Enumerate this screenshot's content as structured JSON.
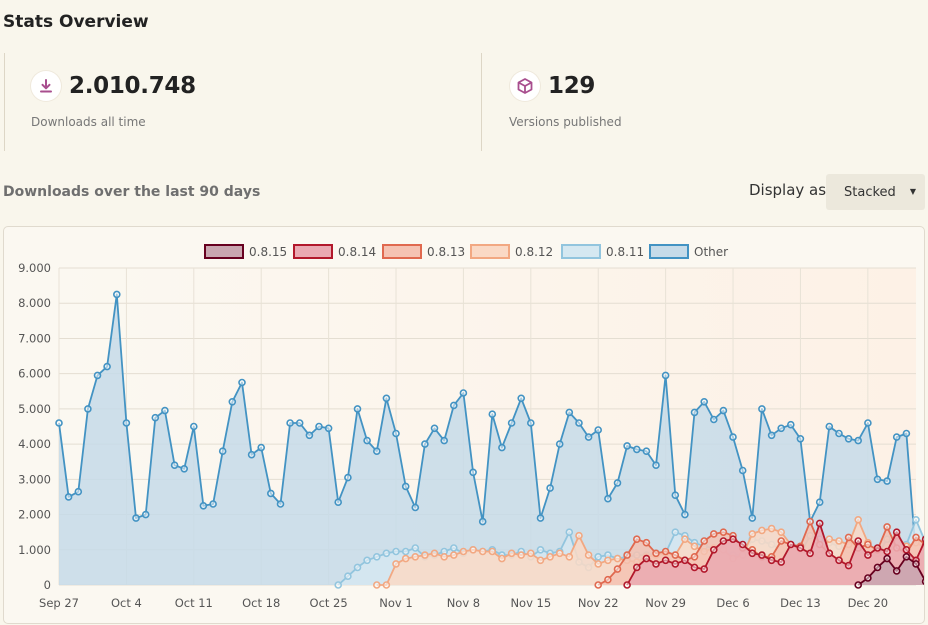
{
  "page": {
    "title": "Stats Overview"
  },
  "stats": {
    "downloads": {
      "value": "2.010.748",
      "label": "Downloads all time",
      "icon": "download-icon",
      "color": "#a84e8e"
    },
    "versions": {
      "value": "129",
      "label": "Versions published",
      "icon": "box-icon",
      "color": "#a84e8e"
    }
  },
  "section": {
    "title": "Downloads over the last 90 days"
  },
  "display": {
    "label": "Display as",
    "selected": "Stacked"
  },
  "chart_data": {
    "type": "area",
    "stacked": true,
    "grid": true,
    "legend_position": "top",
    "ylim": [
      0,
      9000
    ],
    "yticks": [
      "0",
      "1.000",
      "2.000",
      "3.000",
      "4.000",
      "5.000",
      "6.000",
      "7.000",
      "8.000",
      "9.000"
    ],
    "xticks": [
      {
        "label": "Sep 27",
        "index": 0
      },
      {
        "label": "Oct 4",
        "index": 7
      },
      {
        "label": "Oct 11",
        "index": 14
      },
      {
        "label": "Oct 18",
        "index": 21
      },
      {
        "label": "Oct 25",
        "index": 28
      },
      {
        "label": "Nov 1",
        "index": 35
      },
      {
        "label": "Nov 8",
        "index": 42
      },
      {
        "label": "Nov 15",
        "index": 49
      },
      {
        "label": "Nov 22",
        "index": 56
      },
      {
        "label": "Nov 29",
        "index": 63
      },
      {
        "label": "Dec 6",
        "index": 70
      },
      {
        "label": "Dec 13",
        "index": 77
      },
      {
        "label": "Dec 20",
        "index": 84
      }
    ],
    "series": [
      {
        "name": "0.8.15",
        "line": "#67001f",
        "fill": "#c9a6b0",
        "start": 83,
        "totals": [
          0,
          200,
          500,
          750,
          400,
          800,
          600,
          100
        ]
      },
      {
        "name": "0.8.14",
        "line": "#b2182b",
        "fill": "#eaa9b2",
        "start": 59,
        "totals": [
          0,
          500,
          750,
          600,
          700,
          600,
          700,
          500,
          450,
          1000,
          1250,
          1300,
          1150,
          900,
          850,
          700,
          650,
          1150,
          1050,
          900,
          1750,
          900,
          700,
          550,
          1250,
          850,
          1050,
          950,
          1500,
          1000,
          700,
          1300,
          1050,
          200
        ]
      },
      {
        "name": "0.8.13",
        "line": "#e0694f",
        "fill": "#f5c2b2",
        "start": 56,
        "totals": [
          0,
          150,
          450,
          850,
          1300,
          1200,
          900,
          950,
          850,
          700,
          800,
          1250,
          1450,
          1500,
          1400,
          1050,
          1000,
          800,
          800,
          1250,
          1150,
          1100,
          1800,
          1150,
          900,
          700,
          1350,
          1050,
          1150,
          1000,
          1650,
          1050,
          900,
          1350,
          1150,
          250
        ]
      },
      {
        "name": "0.8.12",
        "line": "#f2a882",
        "fill": "#fad9c5",
        "start": 33,
        "totals": [
          0,
          0,
          600,
          750,
          800,
          850,
          900,
          800,
          850,
          950,
          1000,
          950,
          950,
          750,
          900,
          850,
          900,
          700,
          800,
          900,
          800,
          1400,
          850,
          600,
          700,
          750,
          700,
          650,
          800,
          850,
          900,
          850,
          1300,
          1100,
          950,
          1050,
          1000,
          750,
          850,
          1450,
          1550,
          1600,
          1500,
          1150,
          1000,
          850,
          850,
          1300,
          1250,
          1150,
          1850,
          1200,
          900,
          750,
          1400,
          1100,
          1200,
          1050,
          1700,
          1100,
          950,
          1400,
          1200,
          300
        ]
      },
      {
        "name": "0.8.11",
        "line": "#92c5de",
        "fill": "#d5e8f1",
        "start": 29,
        "totals": [
          0,
          250,
          500,
          700,
          800,
          900,
          950,
          950,
          1050,
          800,
          850,
          950,
          1050,
          900,
          1000,
          950,
          1000,
          850,
          850,
          950,
          800,
          1000,
          900,
          950,
          1500,
          650,
          500,
          800,
          850,
          750,
          800,
          850,
          850,
          900,
          900,
          1500,
          1400,
          1200,
          1100,
          1050,
          900,
          850,
          850,
          1300,
          1250,
          1150,
          1000,
          900,
          900,
          1400,
          1300,
          1200,
          1100,
          1000,
          1000,
          850,
          850,
          1300,
          1250,
          1150,
          1850,
          1200,
          900,
          750,
          1400,
          1100,
          1200,
          1050,
          1700,
          1100,
          950,
          1400,
          1200,
          300
        ]
      },
      {
        "name": "Other",
        "line": "#4393c3",
        "fill": "#c6dbe9",
        "start": 0,
        "totals": [
          4600,
          2500,
          2650,
          5000,
          5950,
          6200,
          8250,
          4600,
          1900,
          2000,
          4750,
          4950,
          3400,
          3300,
          4500,
          2250,
          2300,
          3800,
          5200,
          5750,
          3700,
          3900,
          2600,
          2300,
          4600,
          4600,
          4250,
          4500,
          4450,
          2350,
          3050,
          5000,
          4100,
          3800,
          5300,
          4300,
          2800,
          2200,
          4000,
          4450,
          4100,
          5100,
          5450,
          3200,
          1800,
          4850,
          3900,
          4600,
          5300,
          4600,
          1900,
          2750,
          4000,
          4900,
          4600,
          4200,
          4400,
          2450,
          2900,
          3950,
          3850,
          3800,
          3400,
          5950,
          2550,
          2000,
          4900,
          5200,
          4700,
          4950,
          4200,
          3250,
          1900,
          5000,
          4250,
          4450,
          4550,
          4150,
          1800,
          2350,
          4500,
          4300,
          4150,
          4100,
          4600,
          3000,
          2950,
          4200,
          4300,
          800
        ]
      }
    ]
  }
}
